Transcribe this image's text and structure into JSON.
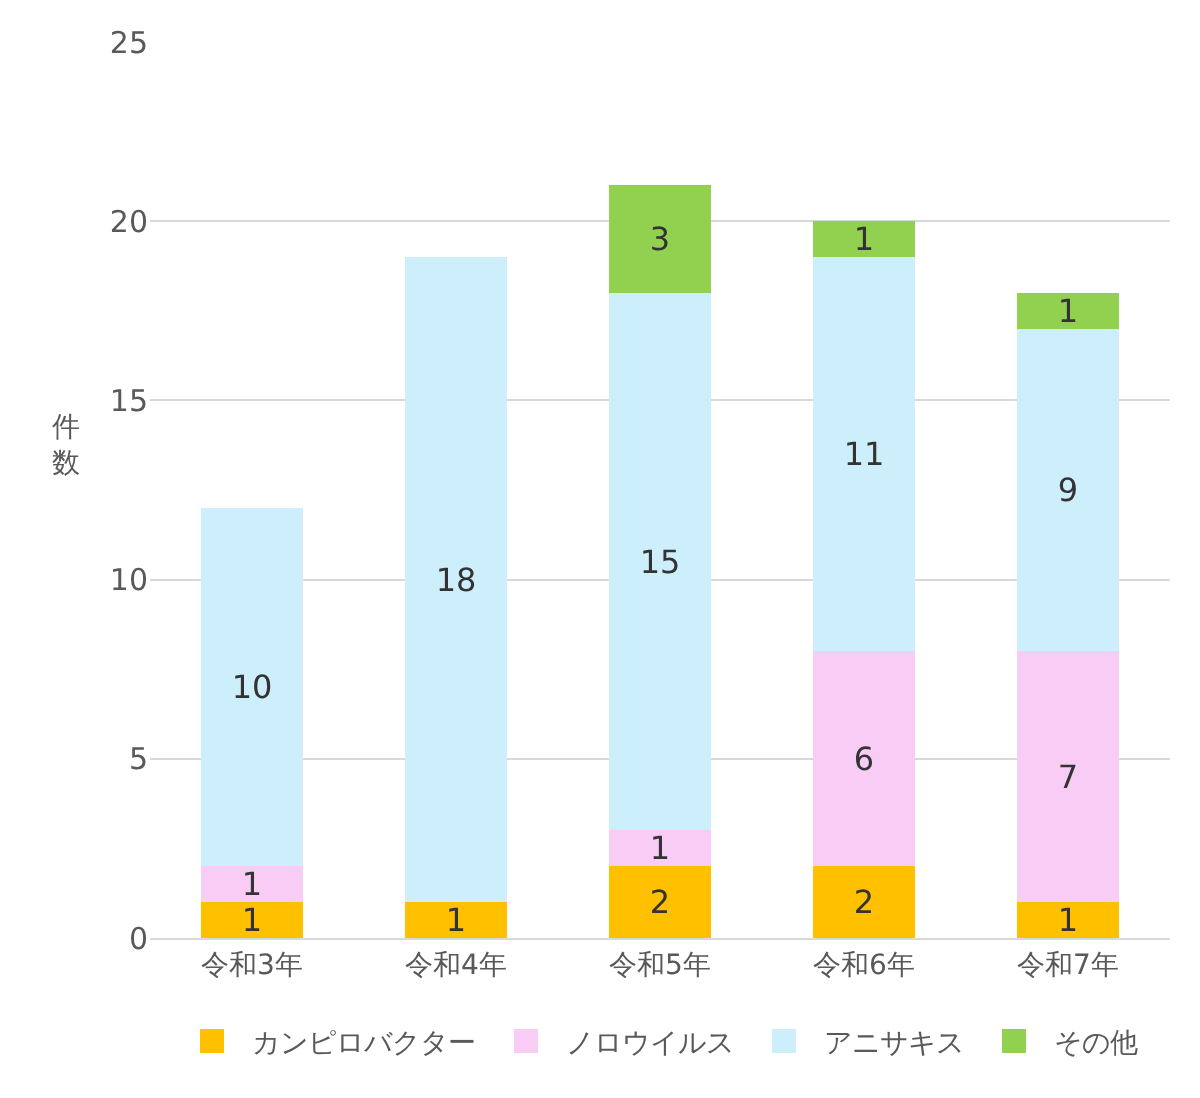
{
  "chart_data": {
    "type": "bar",
    "stacked": true,
    "ylabel": "件数",
    "categories": [
      "令和3年",
      "令和4年",
      "令和5年",
      "令和6年",
      "令和7年"
    ],
    "series": [
      {
        "name": "カンピロバクター",
        "color": "#ffc000",
        "values": [
          1,
          1,
          2,
          2,
          1
        ]
      },
      {
        "name": "ノロウイルス",
        "color": "#f9ccf5",
        "values": [
          1,
          null,
          1,
          6,
          7
        ]
      },
      {
        "name": "アニサキス",
        "color": "#cdeefb",
        "values": [
          10,
          18,
          15,
          11,
          9
        ]
      },
      {
        "name": "その他",
        "color": "#92d050",
        "values": [
          null,
          null,
          3,
          1,
          1
        ]
      }
    ],
    "ylim": [
      0,
      25
    ],
    "yticks": [
      0,
      5,
      10,
      15,
      20,
      25
    ],
    "grid": "y",
    "legend": "bottom",
    "data_labels": true
  }
}
